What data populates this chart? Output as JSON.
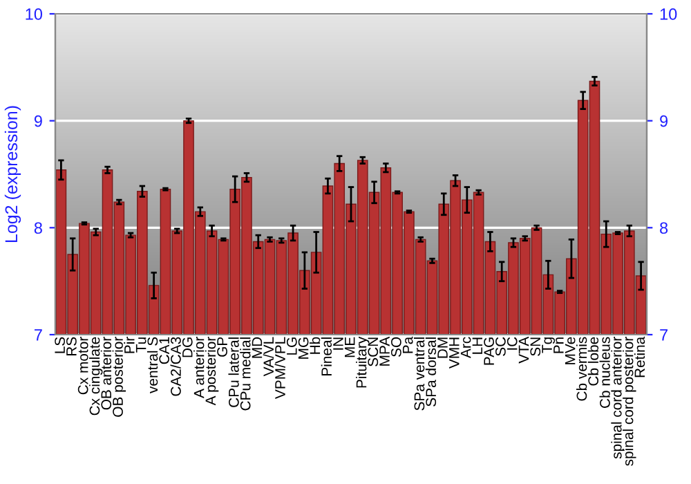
{
  "chart_data": {
    "type": "bar",
    "ylabel": "Log2 (expression)",
    "categories": [
      "LS",
      "RS",
      "Cx motor",
      "Cx cingulate",
      "OB anterior",
      "OB posterior",
      "Pir",
      "Tu",
      "ventral S",
      "CA1",
      "CA2/CA3",
      "DG",
      "A anterior",
      "A posterior",
      "GP",
      "CPu lateral",
      "CPu medial",
      "MD",
      "VA/VL",
      "VPM/VPL",
      "LG",
      "MG",
      "Hb",
      "Pineal",
      "IN",
      "ME",
      "Pituitary",
      "SCN",
      "MPA",
      "SO",
      "Pa",
      "SPa ventral",
      "SPa dorsal",
      "DM",
      "VMH",
      "Arc",
      "LH",
      "PAG",
      "SC",
      "IC",
      "VTA",
      "SN",
      "Tg",
      "Pn",
      "MVe",
      "Cb vermis",
      "Cb lobe",
      "Cb nucleus",
      "spinal cord anterior",
      "spinal cord posterior",
      "Retina"
    ],
    "values": [
      8.54,
      7.75,
      8.04,
      7.96,
      8.54,
      8.24,
      7.93,
      8.34,
      7.46,
      8.36,
      7.97,
      9.0,
      8.15,
      7.97,
      7.89,
      8.36,
      8.47,
      7.87,
      7.89,
      7.88,
      7.95,
      7.6,
      7.77,
      8.39,
      8.6,
      8.22,
      8.63,
      8.33,
      8.56,
      8.33,
      8.15,
      7.89,
      7.69,
      8.22,
      8.44,
      8.26,
      8.33,
      7.87,
      7.59,
      7.86,
      7.9,
      8.0,
      7.56,
      7.4,
      7.71,
      9.19,
      9.37,
      7.94,
      7.95,
      7.97,
      7.55
    ],
    "errors": [
      0.09,
      0.15,
      0.01,
      0.03,
      0.03,
      0.02,
      0.02,
      0.05,
      0.12,
      0.01,
      0.02,
      0.02,
      0.04,
      0.05,
      0.01,
      0.12,
      0.04,
      0.06,
      0.02,
      0.02,
      0.07,
      0.17,
      0.19,
      0.07,
      0.07,
      0.16,
      0.03,
      0.1,
      0.04,
      0.01,
      0.01,
      0.02,
      0.02,
      0.1,
      0.05,
      0.12,
      0.02,
      0.09,
      0.09,
      0.04,
      0.02,
      0.02,
      0.13,
      0.01,
      0.18,
      0.08,
      0.04,
      0.12,
      0.01,
      0.05,
      0.13
    ],
    "color": "#b83232",
    "ylim": [
      7,
      10
    ],
    "yticks": [
      7,
      8,
      9,
      10
    ],
    "y2lim": [
      7,
      10
    ],
    "y2ticks": [
      7,
      8,
      9,
      10
    ],
    "grid": "y"
  }
}
